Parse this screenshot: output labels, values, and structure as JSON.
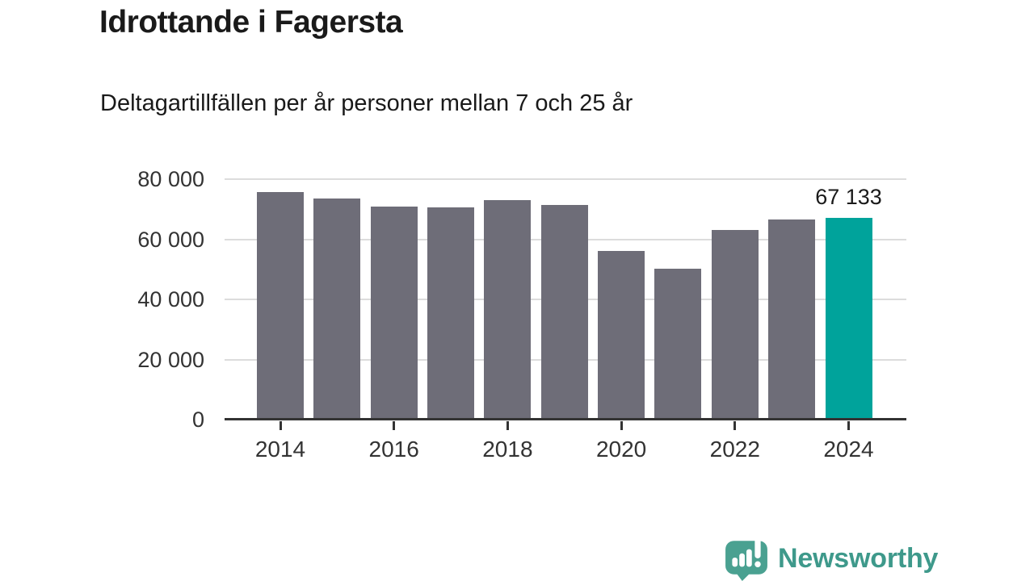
{
  "header": {
    "title": "Idrottande i Fagersta",
    "subtitle": "Deltagartillfällen per år personer mellan 7 och 25 år"
  },
  "chart_data": {
    "type": "bar",
    "categories": [
      "2014",
      "2015",
      "2016",
      "2017",
      "2018",
      "2019",
      "2020",
      "2021",
      "2022",
      "2023",
      "2024"
    ],
    "values": [
      75700,
      73600,
      70900,
      70500,
      73000,
      71500,
      56200,
      50200,
      63100,
      66500,
      67133
    ],
    "highlight_index": 10,
    "highlight_label": "67 133",
    "title": "Idrottande i Fagersta",
    "subtitle": "Deltagartillfällen per år personer mellan 7 och 25 år",
    "ylim": [
      0,
      80000
    ],
    "yticks": [
      80000,
      60000,
      40000,
      20000,
      0
    ],
    "ytick_labels": [
      "80 000",
      "60 000",
      "40 000",
      "20 000",
      "0"
    ],
    "xtick_indices": [
      0,
      2,
      4,
      6,
      8,
      10
    ],
    "xtick_labels": [
      "2014",
      "2016",
      "2018",
      "2020",
      "2022",
      "2024"
    ],
    "grid": true,
    "legend": "none",
    "bar_color": "#6E6D78",
    "highlight_color": "#00A39B",
    "grid_color": "#DCDCDC",
    "axis_color": "#333333"
  },
  "footer": {
    "brand": "Newsworthy",
    "brand_color": "#3E998B",
    "logo_color": "#4AA191",
    "logo_icon": "speech-bubble-bar-chart-icon"
  }
}
